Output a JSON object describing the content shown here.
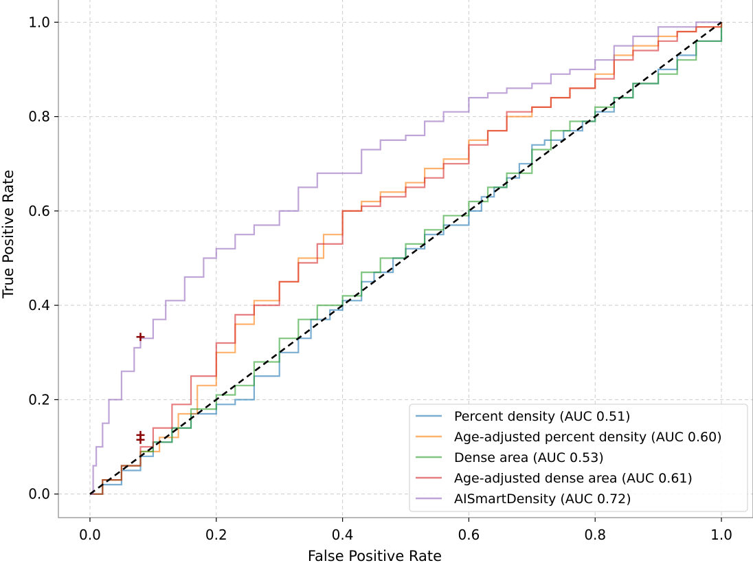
{
  "chart_data": {
    "type": "line",
    "xlabel": "False Positive Rate",
    "ylabel": "True Positive Rate",
    "xlim": [
      -0.05,
      1.05
    ],
    "ylim": [
      -0.05,
      1.05
    ],
    "xticks": [
      "0.0",
      "0.2",
      "0.4",
      "0.6",
      "0.8",
      "1.0"
    ],
    "yticks": [
      "0.0",
      "0.2",
      "0.4",
      "0.6",
      "0.8",
      "1.0"
    ],
    "grid": true,
    "legend_position": "lower-right",
    "series": [
      {
        "name": "Percent density (AUC 0.51)",
        "color": "#1f77b4",
        "x": [
          0,
          0.02,
          0.05,
          0.08,
          0.1,
          0.13,
          0.16,
          0.2,
          0.23,
          0.26,
          0.3,
          0.33,
          0.35,
          0.38,
          0.4,
          0.43,
          0.45,
          0.48,
          0.5,
          0.53,
          0.56,
          0.6,
          0.62,
          0.64,
          0.66,
          0.68,
          0.7,
          0.72,
          0.75,
          0.78,
          0.8,
          0.83,
          0.86,
          0.9,
          0.93,
          0.96,
          1.0
        ],
        "y": [
          0,
          0.02,
          0.05,
          0.08,
          0.11,
          0.14,
          0.17,
          0.19,
          0.2,
          0.25,
          0.3,
          0.33,
          0.37,
          0.39,
          0.41,
          0.45,
          0.47,
          0.5,
          0.52,
          0.55,
          0.57,
          0.6,
          0.63,
          0.65,
          0.67,
          0.7,
          0.74,
          0.75,
          0.77,
          0.79,
          0.81,
          0.84,
          0.87,
          0.9,
          0.93,
          0.96,
          1.0
        ]
      },
      {
        "name": "Age-adjusted percent density (AUC 0.60)",
        "color": "#ff7f0e",
        "x": [
          0,
          0.02,
          0.05,
          0.08,
          0.11,
          0.14,
          0.17,
          0.2,
          0.23,
          0.26,
          0.3,
          0.33,
          0.37,
          0.4,
          0.43,
          0.46,
          0.5,
          0.53,
          0.56,
          0.6,
          0.63,
          0.66,
          0.7,
          0.73,
          0.76,
          0.8,
          0.83,
          0.86,
          0.9,
          0.93,
          0.96,
          1.0
        ],
        "y": [
          0,
          0.03,
          0.06,
          0.09,
          0.12,
          0.17,
          0.23,
          0.3,
          0.36,
          0.41,
          0.45,
          0.5,
          0.55,
          0.6,
          0.62,
          0.64,
          0.66,
          0.69,
          0.71,
          0.75,
          0.77,
          0.8,
          0.82,
          0.84,
          0.86,
          0.89,
          0.93,
          0.95,
          0.97,
          0.98,
          0.99,
          1.0
        ]
      },
      {
        "name": "Dense area (AUC 0.53)",
        "color": "#2ca02c",
        "x": [
          0,
          0.02,
          0.05,
          0.08,
          0.1,
          0.13,
          0.16,
          0.2,
          0.23,
          0.26,
          0.3,
          0.33,
          0.36,
          0.4,
          0.43,
          0.46,
          0.5,
          0.53,
          0.56,
          0.6,
          0.63,
          0.66,
          0.7,
          0.73,
          0.76,
          0.8,
          0.83,
          0.86,
          0.9,
          0.93,
          0.96,
          1.0
        ],
        "y": [
          0,
          0.03,
          0.06,
          0.09,
          0.11,
          0.14,
          0.18,
          0.21,
          0.23,
          0.28,
          0.33,
          0.37,
          0.4,
          0.42,
          0.47,
          0.5,
          0.53,
          0.56,
          0.59,
          0.62,
          0.65,
          0.68,
          0.73,
          0.77,
          0.79,
          0.82,
          0.84,
          0.87,
          0.89,
          0.92,
          0.96,
          1.0
        ]
      },
      {
        "name": "Age-adjusted dense area (AUC 0.61)",
        "color": "#d62728",
        "x": [
          0,
          0.02,
          0.05,
          0.08,
          0.1,
          0.13,
          0.16,
          0.2,
          0.23,
          0.26,
          0.3,
          0.33,
          0.36,
          0.4,
          0.43,
          0.46,
          0.5,
          0.53,
          0.56,
          0.6,
          0.63,
          0.66,
          0.7,
          0.73,
          0.76,
          0.8,
          0.83,
          0.86,
          0.9,
          0.93,
          0.96,
          1.0
        ],
        "y": [
          0,
          0.03,
          0.06,
          0.1,
          0.14,
          0.19,
          0.25,
          0.32,
          0.38,
          0.4,
          0.45,
          0.49,
          0.53,
          0.6,
          0.61,
          0.63,
          0.65,
          0.67,
          0.7,
          0.74,
          0.77,
          0.81,
          0.82,
          0.84,
          0.86,
          0.88,
          0.92,
          0.94,
          0.96,
          0.98,
          0.99,
          1.0
        ]
      },
      {
        "name": "AISmartDensity (AUC 0.72)",
        "color": "#9467bd",
        "x": [
          0,
          0.005,
          0.01,
          0.02,
          0.03,
          0.05,
          0.07,
          0.08,
          0.1,
          0.12,
          0.15,
          0.18,
          0.2,
          0.23,
          0.26,
          0.3,
          0.33,
          0.36,
          0.4,
          0.43,
          0.46,
          0.5,
          0.53,
          0.56,
          0.6,
          0.63,
          0.66,
          0.7,
          0.73,
          0.76,
          0.8,
          0.83,
          0.86,
          0.9,
          0.93,
          0.96,
          1.0
        ],
        "y": [
          0,
          0.06,
          0.1,
          0.15,
          0.2,
          0.26,
          0.31,
          0.33,
          0.37,
          0.41,
          0.46,
          0.5,
          0.52,
          0.55,
          0.57,
          0.6,
          0.65,
          0.68,
          0.68,
          0.73,
          0.75,
          0.76,
          0.79,
          0.81,
          0.84,
          0.85,
          0.86,
          0.87,
          0.89,
          0.9,
          0.92,
          0.95,
          0.97,
          0.99,
          0.99,
          1.0,
          1.0
        ]
      }
    ],
    "reference_line": {
      "x": [
        0,
        1
      ],
      "y": [
        0,
        1
      ],
      "color": "#000000"
    },
    "markers": [
      {
        "x": 0.08,
        "y": 0.333,
        "color": "#8b0000"
      },
      {
        "x": 0.08,
        "y": 0.125,
        "color": "#8b0000"
      },
      {
        "x": 0.08,
        "y": 0.115,
        "color": "#8b0000"
      }
    ]
  }
}
